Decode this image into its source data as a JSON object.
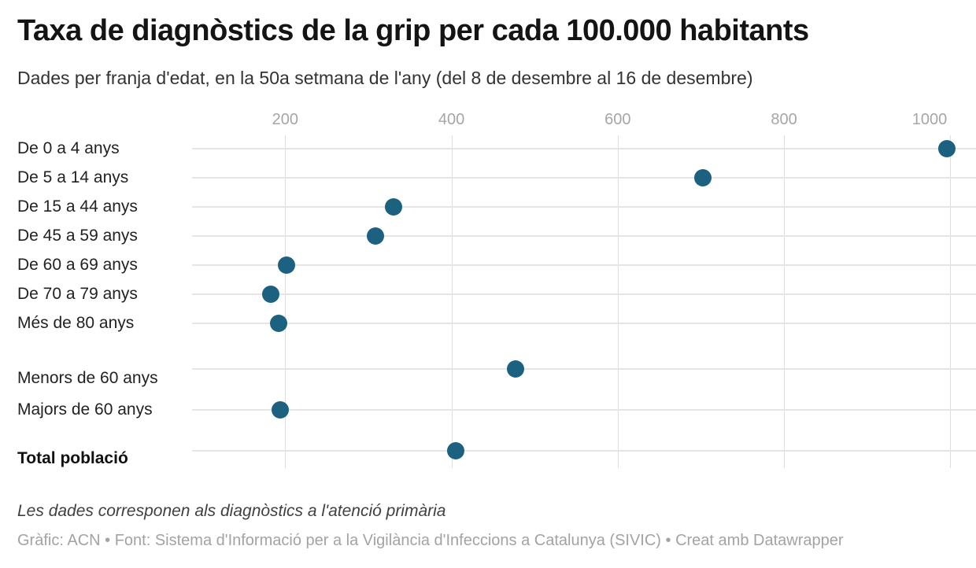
{
  "header": {
    "title": "Taxa de diagnòstics de la grip per cada 100.000 habitants",
    "subtitle": "Dades per franja d'edat, en la 50a setmana de l'any (del 8 de desembre al 16 de desembre)"
  },
  "chart_data": {
    "type": "scatter",
    "variant": "dot-plot",
    "title": "Taxa de diagnòstics de la grip per cada 100.000 habitants",
    "subtitle": "Dades per franja d'edat, en la 50a setmana de l'any (del 8 de desembre al 16 de desembre)",
    "categories": [
      "De 0 a 4 anys",
      "De 5 a 14 anys",
      "De 15 a 44 anys",
      "De 45 a 59 anys",
      "De 60 a 69 anys",
      "De 70 a 79 anys",
      "Més de 80 anys",
      "Menors de 60 anys",
      "Majors de 60 anys",
      "Total població"
    ],
    "values": [
      996,
      702,
      330,
      309,
      202,
      183,
      192,
      477,
      194,
      405
    ],
    "emphasized_categories": [
      "Total població"
    ],
    "xlabel": "",
    "ylabel": "",
    "axis": {
      "min": 88,
      "max": 1031,
      "ticks": [
        200,
        400,
        600,
        800,
        1000
      ]
    },
    "grid": "on",
    "legend": "none",
    "colors": {
      "dot": "#1c6280",
      "gridline": "#dedede",
      "rowline": "#e5e5e5",
      "tick_text": "#a6a6a6"
    }
  },
  "footer": {
    "note": "Les dades corresponen als diagnòstics a l'atenció primària",
    "credits": "Gràfic: ACN • Font: Sistema d'Informació per a la Vigilància d'Infeccions a Catalunya (SIVIC) • Creat amb Datawrapper"
  }
}
